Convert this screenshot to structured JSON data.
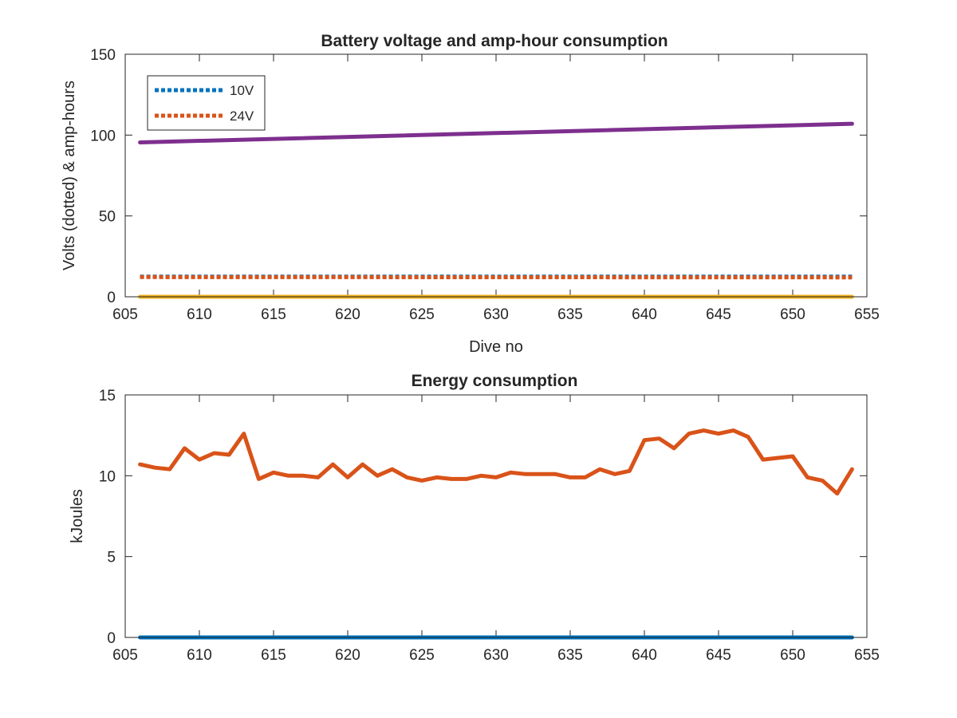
{
  "chart_data": [
    {
      "type": "line",
      "title": "Battery voltage and amp-hour consumption",
      "xlabel": "Dive no",
      "ylabel": "Volts (dotted) & amp-hours",
      "xlim": [
        605,
        655
      ],
      "ylim": [
        0,
        150
      ],
      "xticks": [
        605,
        610,
        615,
        620,
        625,
        630,
        635,
        640,
        645,
        650,
        655
      ],
      "yticks": [
        0,
        50,
        100,
        150
      ],
      "legend_position": "top-left",
      "series": [
        {
          "name": "10V",
          "style": "dotted",
          "color": "#0072BD",
          "x": [
            606,
            654
          ],
          "y": [
            12.5,
            12.5
          ]
        },
        {
          "name": "24V",
          "style": "dotted",
          "color": "#D95319",
          "x": [
            606,
            654
          ],
          "y": [
            12.2,
            12.0
          ]
        },
        {
          "style": "solid",
          "color": "#7E2F8E",
          "x": [
            606,
            654
          ],
          "y": [
            95.5,
            107
          ]
        },
        {
          "style": "solid",
          "color": "#EDB120",
          "x": [
            606,
            654
          ],
          "y": [
            0,
            0
          ]
        }
      ]
    },
    {
      "type": "line",
      "title": "Energy consumption",
      "xlabel": "",
      "ylabel": "kJoules",
      "xlim": [
        605,
        655
      ],
      "ylim": [
        0,
        15
      ],
      "xticks": [
        605,
        610,
        615,
        620,
        625,
        630,
        635,
        640,
        645,
        650,
        655
      ],
      "yticks": [
        0,
        5,
        10,
        15
      ],
      "series": [
        {
          "style": "solid",
          "color": "#0072BD",
          "x": [
            606,
            654
          ],
          "y": [
            0,
            0
          ]
        },
        {
          "style": "solid",
          "color": "#D95319",
          "x": [
            606,
            607,
            608,
            609,
            610,
            611,
            612,
            613,
            614,
            615,
            616,
            617,
            618,
            619,
            620,
            621,
            622,
            623,
            624,
            625,
            626,
            627,
            628,
            629,
            630,
            631,
            632,
            633,
            634,
            635,
            636,
            637,
            638,
            639,
            640,
            641,
            642,
            643,
            644,
            645,
            646,
            647,
            648,
            649,
            650,
            651,
            652,
            653,
            654
          ],
          "y": [
            10.7,
            10.5,
            10.4,
            11.7,
            11.0,
            11.4,
            11.3,
            12.6,
            9.8,
            10.2,
            10.0,
            10.0,
            9.9,
            10.7,
            9.9,
            10.7,
            10.0,
            10.4,
            9.9,
            9.7,
            9.9,
            9.8,
            9.8,
            10.0,
            9.9,
            10.2,
            10.1,
            10.1,
            10.1,
            9.9,
            9.9,
            10.4,
            10.1,
            10.3,
            12.2,
            12.3,
            11.7,
            12.6,
            12.8,
            12.6,
            12.8,
            12.4,
            11.0,
            11.1,
            11.2,
            9.9,
            9.7,
            8.9,
            10.4
          ]
        }
      ]
    }
  ]
}
